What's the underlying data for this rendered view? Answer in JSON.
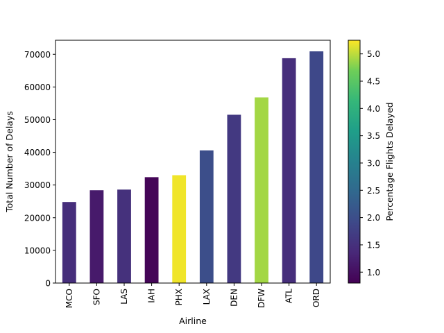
{
  "chart_data": {
    "type": "bar",
    "title": "",
    "xlabel": "Airline",
    "ylabel": "Total Number of Delays",
    "categories": [
      "MCO",
      "SFO",
      "LAS",
      "IAH",
      "PHX",
      "LAX",
      "DEN",
      "DFW",
      "ATL",
      "ORD"
    ],
    "values": [
      24800,
      28400,
      28600,
      32400,
      33000,
      40600,
      51500,
      56800,
      68800,
      70900
    ],
    "color_values": [
      1.45,
      1.15,
      1.5,
      0.85,
      5.2,
      2.0,
      1.65,
      4.9,
      1.45,
      1.9
    ],
    "ylim": [
      0,
      74300
    ],
    "yticks": [
      0,
      10000,
      20000,
      30000,
      40000,
      50000,
      60000,
      70000
    ],
    "grid": false,
    "colorbar": {
      "label": "Percentage Flights Delayed",
      "colormap": "viridis",
      "range": [
        0.8,
        5.25
      ],
      "ticks": [
        "1.0",
        "1.5",
        "2.0",
        "2.5",
        "3.0",
        "3.5",
        "4.0",
        "4.5",
        "5.0"
      ]
    }
  }
}
